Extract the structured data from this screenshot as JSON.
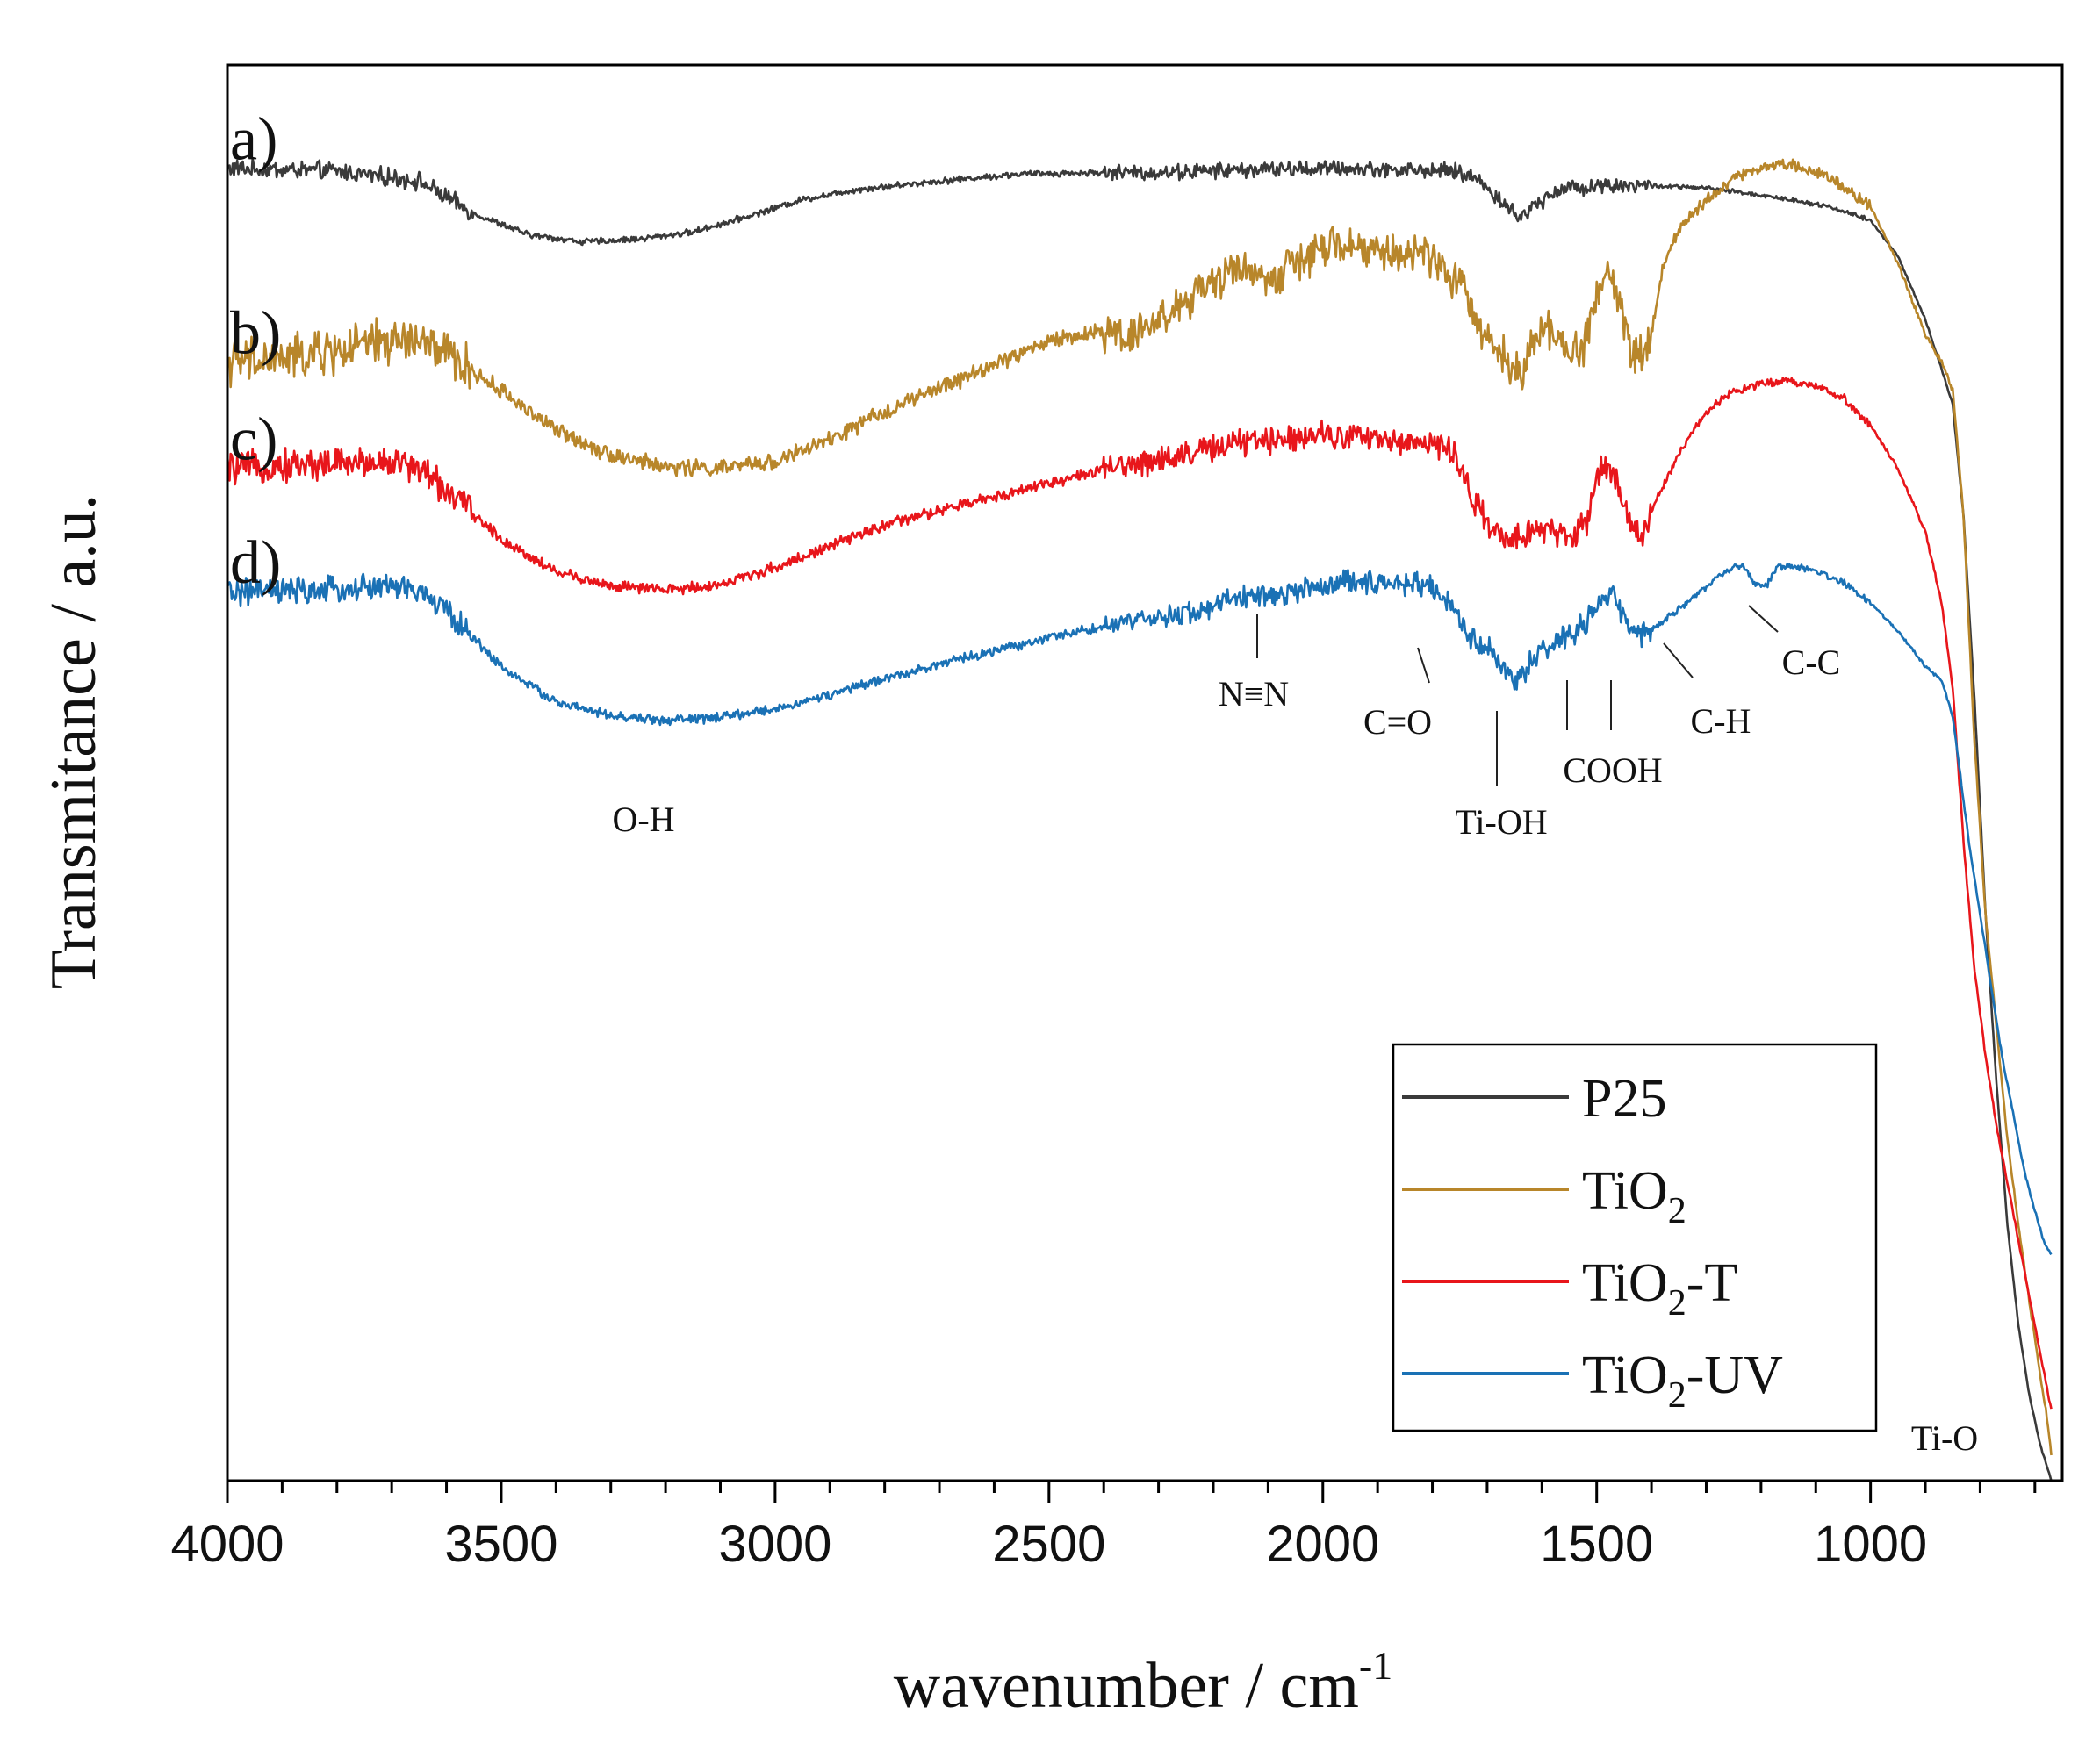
{
  "chart_data": {
    "type": "line",
    "title": "",
    "xlabel": "wavenumber / cm",
    "xlabel_sup": "-1",
    "ylabel": "Transmitance / a.u.",
    "xlim": [
      4000,
      650
    ],
    "ylim": [
      0,
      100
    ],
    "x_reversed": true,
    "x_ticks": [
      4000,
      3500,
      3000,
      2500,
      2000,
      1500,
      1000
    ],
    "x_tick_labels": [
      "4000",
      "3500",
      "3000",
      "2500",
      "2000",
      "1500",
      "1000"
    ],
    "y_ticks_shown": false,
    "grid": false,
    "legend_position": "bottom-right",
    "series": [
      {
        "name": "P25",
        "letter": "a)",
        "color": "#3a3a3a",
        "noise": 1.0,
        "x": [
          4000,
          3800,
          3650,
          3550,
          3450,
          3350,
          3250,
          3150,
          3050,
          2950,
          2850,
          2700,
          2550,
          2400,
          2300,
          2150,
          2000,
          1850,
          1760,
          1720,
          1690,
          1660,
          1640,
          1610,
          1570,
          1500,
          1420,
          1300,
          1200,
          1100,
          1050,
          1000,
          950,
          900,
          870,
          850,
          830,
          810,
          790,
          770,
          750,
          730,
          710,
          690,
          670
        ],
        "values": [
          92.7,
          92.5,
          91.8,
          89.5,
          88.0,
          87.5,
          87.7,
          88.2,
          89.3,
          90.5,
          91.2,
          91.8,
          92.3,
          92.4,
          92.4,
          92.6,
          92.7,
          92.6,
          92.5,
          92.0,
          91.0,
          89.8,
          89.2,
          90.2,
          91.2,
          91.5,
          91.5,
          91.3,
          90.8,
          90.2,
          89.7,
          89.0,
          86.5,
          82.0,
          78.5,
          76.0,
          68.0,
          55.0,
          40.0,
          28.0,
          18.0,
          11.0,
          6.0,
          2.5,
          0.0
        ]
      },
      {
        "name": "TiO",
        "name_sub": "2",
        "name_suffix": "",
        "letter": "b)",
        "color": "#b8862a",
        "noise": 2.6,
        "x": [
          4000,
          3900,
          3800,
          3700,
          3650,
          3600,
          3500,
          3400,
          3300,
          3200,
          3100,
          3000,
          2900,
          2800,
          2650,
          2500,
          2400,
          2350,
          2300,
          2200,
          2150,
          2120,
          2080,
          2050,
          2000,
          1950,
          1900,
          1800,
          1760,
          1720,
          1690,
          1660,
          1640,
          1610,
          1590,
          1560,
          1530,
          1500,
          1480,
          1460,
          1440,
          1420,
          1400,
          1380,
          1350,
          1300,
          1250,
          1200,
          1150,
          1100,
          1050,
          1000,
          950,
          900,
          870,
          850,
          830,
          810,
          790,
          770,
          750,
          730,
          700,
          680,
          670
        ],
        "values": [
          79.0,
          79.2,
          79.8,
          80.5,
          80.5,
          79.5,
          77.0,
          74.2,
          72.5,
          71.6,
          71.5,
          72.0,
          73.5,
          75.5,
          78.0,
          80.5,
          81.2,
          81.0,
          82.0,
          84.5,
          86.0,
          85.0,
          85.0,
          86.0,
          87.0,
          87.2,
          86.8,
          86.5,
          85.0,
          82.0,
          80.5,
          79.0,
          78.5,
          80.5,
          81.5,
          80.0,
          79.5,
          84.0,
          85.0,
          84.0,
          80.0,
          79.3,
          81.0,
          85.5,
          88.5,
          90.5,
          92.0,
          92.8,
          93.0,
          92.5,
          91.5,
          90.0,
          86.0,
          81.0,
          79.0,
          77.0,
          68.0,
          52.0,
          40.0,
          32.0,
          24.0,
          18.0,
          10.0,
          5.0,
          2.0
        ]
      },
      {
        "name": "TiO",
        "name_sub": "2",
        "name_suffix": "-T",
        "letter": "c)",
        "color": "#e8161b",
        "noise": 1.8,
        "x": [
          4000,
          3850,
          3700,
          3650,
          3600,
          3500,
          3400,
          3300,
          3200,
          3100,
          3000,
          2900,
          2800,
          2650,
          2500,
          2350,
          2250,
          2150,
          2100,
          2050,
          2000,
          1950,
          1900,
          1800,
          1760,
          1720,
          1690,
          1660,
          1640,
          1610,
          1580,
          1550,
          1520,
          1500,
          1480,
          1460,
          1440,
          1420,
          1400,
          1350,
          1300,
          1250,
          1200,
          1150,
          1100,
          1050,
          1000,
          950,
          900,
          870,
          850,
          830,
          810,
          790,
          770,
          750,
          730,
          710,
          690,
          680,
          670
        ],
        "values": [
          71.5,
          71.8,
          72.0,
          71.5,
          70.0,
          66.5,
          64.2,
          63.2,
          62.9,
          63.3,
          64.5,
          66.0,
          67.5,
          69.0,
          70.5,
          71.8,
          72.5,
          73.3,
          73.5,
          73.8,
          74.0,
          73.8,
          73.5,
          73.3,
          72.5,
          69.0,
          67.0,
          66.0,
          66.5,
          67.5,
          67.0,
          66.5,
          67.5,
          71.0,
          71.8,
          70.0,
          67.5,
          66.8,
          68.5,
          72.5,
          75.5,
          77.0,
          77.5,
          77.7,
          77.3,
          76.5,
          74.5,
          71.5,
          67.0,
          62.0,
          56.0,
          45.0,
          36.0,
          30.0,
          25.0,
          21.0,
          17.0,
          13.0,
          9.0,
          7.0,
          5.0
        ]
      },
      {
        "name": "TiO",
        "name_sub": "2",
        "name_suffix": "-UV",
        "letter": "d)",
        "color": "#1a71b5",
        "noise": 1.5,
        "x": [
          4000,
          3850,
          3700,
          3650,
          3600,
          3500,
          3400,
          3300,
          3200,
          3100,
          3000,
          2900,
          2750,
          2600,
          2450,
          2300,
          2200,
          2150,
          2100,
          2050,
          2000,
          1950,
          1900,
          1800,
          1760,
          1730,
          1700,
          1670,
          1650,
          1620,
          1590,
          1560,
          1520,
          1490,
          1470,
          1450,
          1430,
          1400,
          1370,
          1330,
          1280,
          1250,
          1230,
          1210,
          1190,
          1170,
          1130,
          1100,
          1050,
          1000,
          950,
          900,
          870,
          850,
          820,
          800,
          780,
          760,
          740,
          720,
          700,
          680,
          670
        ],
        "values": [
          62.8,
          62.8,
          63.2,
          62.8,
          61.5,
          57.5,
          55.0,
          54.0,
          53.7,
          53.9,
          54.5,
          55.5,
          57.2,
          58.6,
          60.0,
          60.9,
          61.7,
          62.5,
          62.5,
          62.8,
          63.2,
          63.5,
          63.5,
          63.2,
          61.5,
          59.5,
          58.8,
          57.5,
          56.5,
          57.8,
          58.8,
          59.5,
          60.5,
          62.2,
          62.7,
          61.0,
          59.5,
          60.0,
          61.0,
          62.2,
          63.8,
          64.5,
          64.5,
          63.3,
          63.2,
          64.6,
          64.5,
          64.2,
          63.5,
          62.0,
          60.0,
          57.5,
          56.5,
          54.0,
          45.0,
          40.0,
          35.0,
          30.0,
          26.0,
          22.0,
          19.0,
          16.5,
          16.0
        ]
      }
    ],
    "annotations": [
      {
        "label": "O-H"
      },
      {
        "label": "N≡N"
      },
      {
        "label": "C=O"
      },
      {
        "label": "Ti-OH"
      },
      {
        "label": "COOH"
      },
      {
        "label": "C-H"
      },
      {
        "label": "C-C"
      },
      {
        "label": "Ti-O"
      }
    ]
  }
}
